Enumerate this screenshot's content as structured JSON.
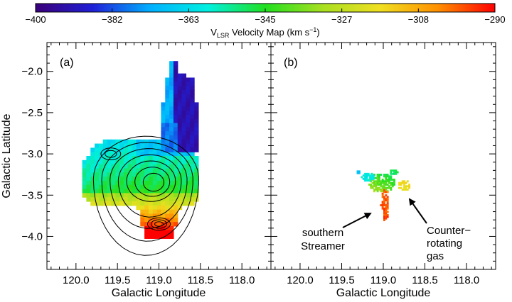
{
  "colorbar": {
    "title_main": "V",
    "title_sub": "LSR",
    "title_rest": " Velocity Map (km s",
    "title_sup": "−1",
    "title_end": ")",
    "range": [
      -400,
      -290
    ],
    "ticks": [
      "−400",
      "−382",
      "−363",
      "−345",
      "−327",
      "−308",
      "−290"
    ],
    "colors": [
      "#3a0078",
      "#2020d8",
      "#00b0ff",
      "#00f0e0",
      "#20e020",
      "#a8e020",
      "#f0e020",
      "#ff9000",
      "#ff0000"
    ]
  },
  "chart_data": [
    {
      "type": "heatmap",
      "panel_label": "(a)",
      "xlabel": "Galactic Longitude",
      "ylabel": "Galactic Latitude",
      "xlim": [
        120.35,
        117.65
      ],
      "ylim": [
        -4.4,
        -1.65
      ],
      "xticks": [
        "120.0",
        "119.5",
        "119.0",
        "118.5",
        "118.0"
      ],
      "yticks": [
        "−2.0",
        "−2.5",
        "−3.0",
        "−3.5",
        "−4.0"
      ],
      "grid": false,
      "contour_peaks": [
        {
          "l": 119.0,
          "b": -3.35
        },
        {
          "l": 119.0,
          "b": -3.9
        },
        {
          "l": 119.55,
          "b": -3.0
        }
      ],
      "contour_levels": 7
    },
    {
      "type": "heatmap",
      "panel_label": "(b)",
      "xlabel": "Galactic Longitude",
      "ylabel": "",
      "xlim": [
        120.35,
        117.65
      ],
      "ylim": [
        -4.4,
        -1.65
      ],
      "xticks": [
        "120.0",
        "119.5",
        "119.0",
        "118.5",
        "118.0"
      ],
      "yticks": [],
      "grid": false,
      "annotations": [
        {
          "lines": [
            "southern",
            "Streamer"
          ]
        },
        {
          "lines": [
            "Counter−",
            "rotating",
            "gas"
          ]
        }
      ]
    }
  ],
  "icons": {
    "arrow_left": "arrow-icon",
    "arrow_right": "arrow-icon"
  }
}
